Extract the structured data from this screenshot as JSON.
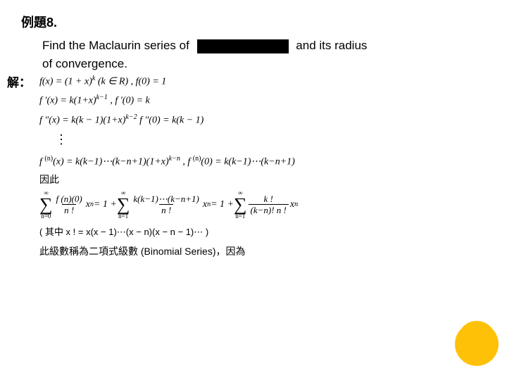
{
  "title": "例題8.",
  "problem": {
    "line1_before": "Find the Maclaurin series of",
    "line1_after": "and its radius",
    "line2": "of convergence."
  },
  "solution_label": "解：",
  "math": {
    "r1_a": "f(x) = (1 + x)",
    "r1_exp": "k",
    "r1_b": "  (k ∈ R) ,     f(0) = 1",
    "r2_a": "f ′(x) = k(1+x)",
    "r2_exp": "k−1",
    "r2_b": " ,    f ′(0) = k",
    "r3_a": "f ″(x) = k(k − 1)(1+x)",
    "r3_exp": "k−2",
    "r3_b": "      f ″(0) = k(k − 1)",
    "r4_a": "f ",
    "r4_sup1": "(n)",
    "r4_b": "(x) = k(k−1)⋯(k−n+1)(1+x)",
    "r4_exp": "k−n",
    "r4_c": " ,     f ",
    "r4_sup2": "(n)",
    "r4_d": "(0) = k(k−1)⋯(k−n+1)",
    "therefore": "因此",
    "sigma_top": "∞",
    "sigma_bot": "n=0",
    "sigma_bot1": "n=1",
    "frac1_num": "f (n)(0)",
    "frac1_den": "n !",
    "seg1": " x",
    "seg1_exp": "n",
    "seg2": " = 1 + ",
    "frac2_num": "k(k−1)⋯(k−n+1)",
    "frac2_den": "n !",
    "seg3": " x",
    "seg3_exp": "n",
    "seg4": " = 1 + ",
    "frac3_num": "k !",
    "frac3_den": "(k−n)! n !",
    "seg5": " x",
    "seg5_exp": "n",
    "note": "( 其中  x ! = x(x − 1)⋯(x − n)(x − n − 1)⋯ )",
    "conclusion": "此級數稱為二項式級數 (Binomial Series)，因為"
  },
  "colors": {
    "background": "#ffffff",
    "text": "#000000",
    "accent": "#ffc107"
  }
}
